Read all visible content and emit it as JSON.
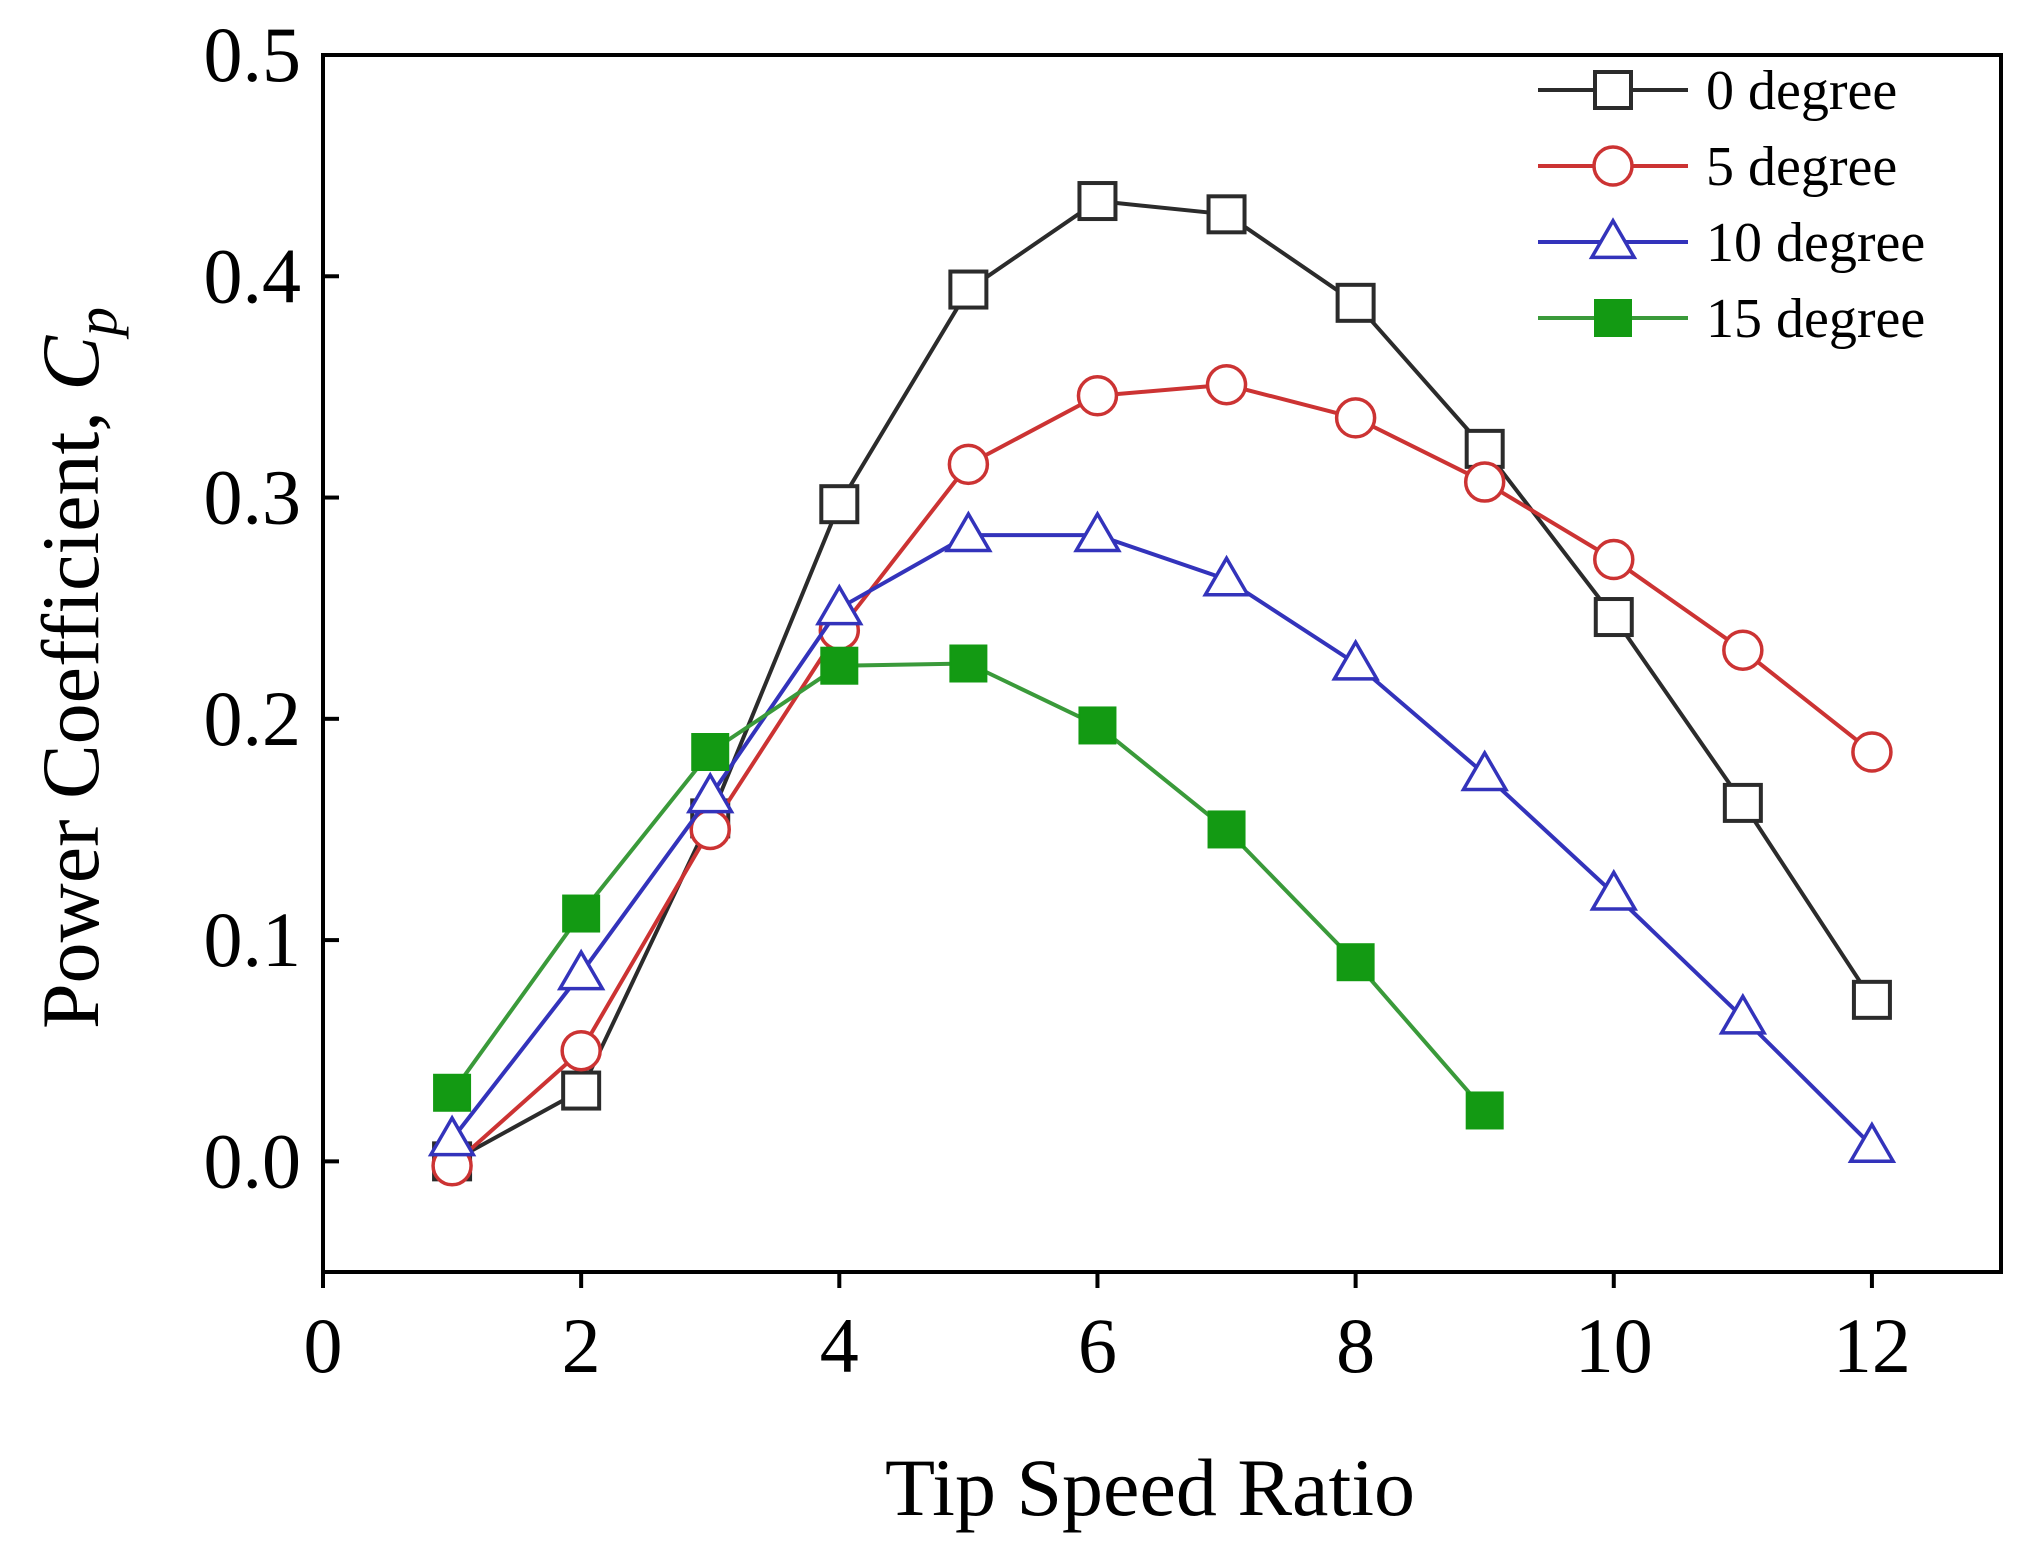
{
  "chart_data": {
    "type": "line",
    "title": "",
    "xlabel": "Tip Speed Ratio",
    "ylabel": "Power Coefficient, ",
    "ylabel_symbol": "C",
    "ylabel_subscript": "p",
    "xlim": [
      0,
      13
    ],
    "ylim": [
      -0.05,
      0.5
    ],
    "xticks": [
      0,
      2,
      4,
      6,
      8,
      10,
      12
    ],
    "xtick_labels": [
      "0",
      "2",
      "4",
      "6",
      "8",
      "10",
      "12"
    ],
    "yticks": [
      0.0,
      0.1,
      0.2,
      0.3,
      0.4,
      0.5
    ],
    "ytick_labels": [
      "0.0",
      "0.1",
      "0.2",
      "0.3",
      "0.4",
      "0.5"
    ],
    "grid": false,
    "legend_position": "top-right",
    "series": [
      {
        "name": "0 degree",
        "color": "#2b2b2b",
        "marker": "square-open",
        "x": [
          1,
          2,
          3,
          4,
          5,
          6,
          7,
          8,
          9,
          10,
          11,
          12
        ],
        "values": [
          0.0,
          0.032,
          0.155,
          0.297,
          0.394,
          0.434,
          0.428,
          0.388,
          0.322,
          0.246,
          0.162,
          0.073
        ]
      },
      {
        "name": "5 degree",
        "color": "#cc3333",
        "marker": "circle-open",
        "x": [
          1,
          2,
          3,
          4,
          5,
          6,
          7,
          8,
          9,
          10,
          11,
          12
        ],
        "values": [
          -0.002,
          0.05,
          0.15,
          0.24,
          0.315,
          0.346,
          0.351,
          0.336,
          0.307,
          0.272,
          0.231,
          0.185
        ]
      },
      {
        "name": "10 degree",
        "color": "#3333bb",
        "marker": "triangle-open",
        "x": [
          1,
          2,
          3,
          4,
          5,
          6,
          7,
          8,
          9,
          10,
          11,
          12
        ],
        "values": [
          0.01,
          0.085,
          0.165,
          0.25,
          0.283,
          0.283,
          0.263,
          0.225,
          0.175,
          0.121,
          0.065,
          0.007
        ]
      },
      {
        "name": "15 degree",
        "color": "#3a9a3a",
        "fill": "#139a13",
        "marker": "square-filled",
        "x": [
          1,
          2,
          3,
          4,
          5,
          6,
          7,
          8,
          9
        ],
        "values": [
          0.031,
          0.112,
          0.185,
          0.224,
          0.225,
          0.197,
          0.15,
          0.09,
          0.023
        ]
      }
    ]
  }
}
